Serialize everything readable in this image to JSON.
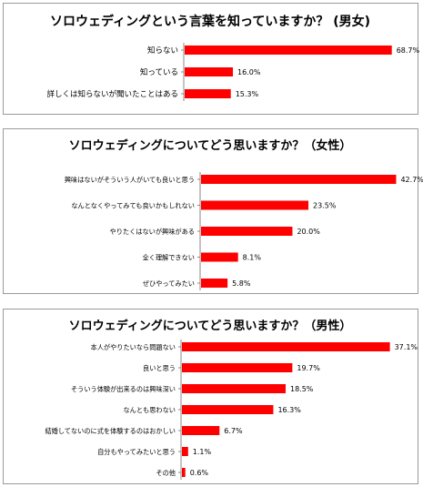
{
  "chart_data": [
    {
      "type": "bar",
      "orientation": "horizontal",
      "title": "ソロウェディングという言葉を知っていますか？ (男女)",
      "categories": [
        "知らない",
        "知っている",
        "詳しくは知らないが聞いたことはある"
      ],
      "values": [
        68.7,
        16.0,
        15.3
      ],
      "value_labels": [
        "68.7%",
        "16.0%",
        "15.3%"
      ],
      "unit": "%",
      "xlim": [
        0,
        70
      ],
      "grid": false,
      "bar_color": "#ff0000"
    },
    {
      "type": "bar",
      "orientation": "horizontal",
      "title": "ソロウェディングについてどう思いますか？（女性）",
      "categories": [
        "興味はないがそういう人がいても良いと思う",
        "なんとなくやってみても良いかもしれない",
        "やりたくはないが興味がある",
        "全く理解できない",
        "ぜひやってみたい"
      ],
      "values": [
        42.7,
        23.5,
        20.0,
        8.1,
        5.8
      ],
      "value_labels": [
        "42.7%",
        "23.5%",
        "20.0%",
        "8.1%",
        "5.8%"
      ],
      "unit": "%",
      "xlim": [
        0,
        44
      ],
      "grid": false,
      "bar_color": "#ff0000"
    },
    {
      "type": "bar",
      "orientation": "horizontal",
      "title": "ソロウェディングについてどう思いますか？（男性）",
      "categories": [
        "本人がやりたいなら問題ない",
        "良いと思う",
        "そういう体験が出来るのは興味深い",
        "なんとも思わない",
        "結婚してないのに式を体験するのはおかしい",
        "自分もやってみたいと思う",
        "その他"
      ],
      "values": [
        37.1,
        19.7,
        18.5,
        16.3,
        6.7,
        1.1,
        0.6
      ],
      "value_labels": [
        "37.1%",
        "19.7%",
        "18.5%",
        "16.3%",
        "6.7%",
        "1.1%",
        "0.6%"
      ],
      "unit": "%",
      "xlim": [
        0,
        38.3
      ],
      "grid": false,
      "bar_color": "#ff0000"
    }
  ]
}
